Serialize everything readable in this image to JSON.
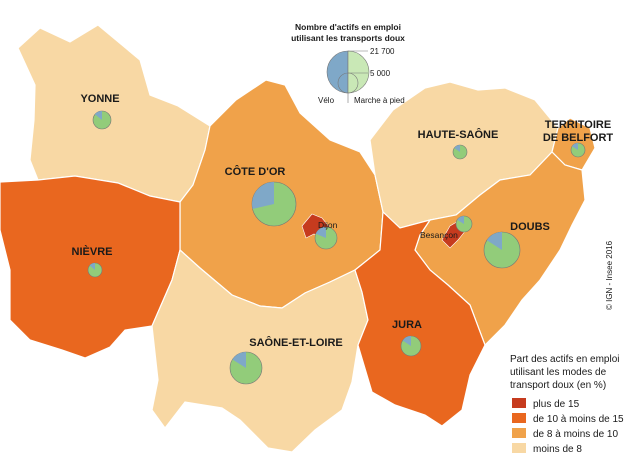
{
  "size_legend": {
    "title_line1": "Nombre d'actifs en emploi",
    "title_line2": "utilisant les transports doux",
    "value_large": "21 700",
    "value_small": "5 000",
    "label_left": "Vélo",
    "label_right": "Marche à pied"
  },
  "departments": [
    {
      "id": "yonne",
      "label": "YONNE"
    },
    {
      "id": "cote-dor",
      "label": "CÔTE D'OR"
    },
    {
      "id": "nievre",
      "label": "NIÈVRE"
    },
    {
      "id": "saone-et-loire",
      "label": "SAÔNE-ET-LOIRE"
    },
    {
      "id": "haute-saone",
      "label": "HAUTE-SAÔNE"
    },
    {
      "id": "doubs",
      "label": "DOUBS"
    },
    {
      "id": "jura",
      "label": "JURA"
    },
    {
      "id": "belfort",
      "label_line1": "TERRITOIRE",
      "label_line2": "DE BELFORT"
    }
  ],
  "cities": [
    {
      "id": "dijon",
      "label": "Dijon"
    },
    {
      "id": "besancon",
      "label": "Besançon"
    }
  ],
  "colors": {
    "plus_15": "#c63b1e",
    "de_10_a_15": "#e9671f",
    "de_8_a_10": "#f0a24a",
    "moins_8": "#f8d8a4",
    "velo": "#7fa8c8",
    "marche": "#92cc7a",
    "border": "#ffffff"
  },
  "legend": {
    "title_line1": "Part des actifs en emploi",
    "title_line2": "utilisant les modes de",
    "title_line3": "transport doux (en %)",
    "items": [
      {
        "label": "plus de 15",
        "color": "#c63b1e"
      },
      {
        "label": "de 10 à moins de 15",
        "color": "#e9671f"
      },
      {
        "label": "de 8 à moins de 10",
        "color": "#f0a24a"
      },
      {
        "label": "moins de 8",
        "color": "#f8d8a4"
      }
    ]
  },
  "copyright": "© IGN - Insee 2016"
}
